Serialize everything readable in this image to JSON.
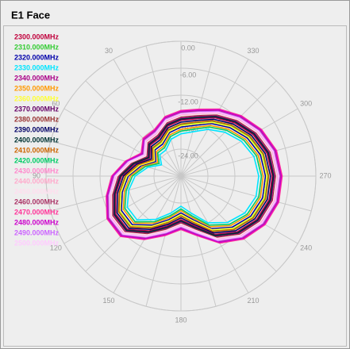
{
  "chart_data": {
    "type": "polar",
    "title": "E1 Face",
    "theta": [
      0,
      15,
      30,
      45,
      60,
      75,
      90,
      105,
      120,
      135,
      150,
      165,
      180,
      195,
      210,
      225,
      240,
      255,
      270,
      285,
      300,
      315,
      330,
      345
    ],
    "thetaticks": [
      30,
      60,
      90,
      120,
      150,
      180,
      210,
      240,
      270,
      300,
      330
    ],
    "rlim": [
      -30,
      0
    ],
    "rticks": [
      {
        "value": 0,
        "label": "0.00"
      },
      {
        "value": -6,
        "label": "-6.00"
      },
      {
        "value": -12,
        "label": "-12.00"
      },
      {
        "value": -18,
        "label": "-18.00"
      },
      {
        "value": -24,
        "label": "-24.00"
      }
    ],
    "series": [
      {
        "name": "2300.000MHz",
        "color": "#c0003c",
        "values": [
          -17.6,
          -18.5,
          -20.3,
          -20.3,
          -22,
          -19.4,
          -16.8,
          -15,
          -13.2,
          -13.2,
          -15.9,
          -18.5,
          -20.3,
          -18.5,
          -15,
          -12.4,
          -10.6,
          -9.7,
          -9.7,
          -10.2,
          -11.5,
          -13.2,
          -15,
          -16.8
        ]
      },
      {
        "name": "2310.000MHz",
        "color": "#33cc33",
        "values": [
          -18.6,
          -19.5,
          -21.3,
          -21.3,
          -23,
          -20.4,
          -17.8,
          -16,
          -14.2,
          -14.2,
          -16.9,
          -19.5,
          -21.3,
          -19.5,
          -16,
          -13.4,
          -11.6,
          -10.7,
          -10.7,
          -11.2,
          -12.5,
          -14.2,
          -16,
          -17.8
        ]
      },
      {
        "name": "2320.000MHz",
        "color": "#0000aa",
        "values": [
          -19.1,
          -20,
          -21.8,
          -21.8,
          -23.5,
          -20.9,
          -18.3,
          -16.5,
          -14.7,
          -14.7,
          -17.4,
          -20,
          -21.8,
          -20,
          -16.5,
          -13.9,
          -12.1,
          -11.2,
          -11.2,
          -11.7,
          -13,
          -14.7,
          -16.5,
          -18.3
        ]
      },
      {
        "name": "2330.000MHz",
        "color": "#00e5ff",
        "values": [
          -20.6,
          -21.5,
          -23.3,
          -23.3,
          -25,
          -22.4,
          -19.8,
          -18,
          -16.2,
          -16.2,
          -18.9,
          -21.5,
          -23.3,
          -21.5,
          -18,
          -15.4,
          -13.6,
          -12.7,
          -12.7,
          -13.2,
          -14.5,
          -16.2,
          -18,
          -19.8
        ]
      },
      {
        "name": "2340.000MHz",
        "color": "#aa0088",
        "values": [
          -17.1,
          -18,
          -19.8,
          -19.8,
          -21.5,
          -18.9,
          -16.3,
          -14.5,
          -12.7,
          -12.7,
          -15.4,
          -18,
          -19.8,
          -18,
          -14.5,
          -11.9,
          -10.1,
          -9.2,
          -9.2,
          -9.7,
          -11,
          -12.7,
          -14.5,
          -16.3
        ]
      },
      {
        "name": "2350.000MHz",
        "color": "#ff9900",
        "values": [
          -19.6,
          -20.5,
          -22.3,
          -22.3,
          -24,
          -21.4,
          -18.8,
          -17,
          -15.2,
          -15.2,
          -17.9,
          -20.5,
          -22.3,
          -20.5,
          -17,
          -14.4,
          -12.6,
          -11.7,
          -11.7,
          -12.2,
          -13.5,
          -15.2,
          -17,
          -18.8
        ]
      },
      {
        "name": "2360.000MHz",
        "color": "#ffff33",
        "values": [
          -18.8,
          -19.7,
          -21.5,
          -21.5,
          -23.2,
          -20.6,
          -18,
          -16.2,
          -14.4,
          -14.4,
          -17.1,
          -19.7,
          -21.5,
          -19.7,
          -16.2,
          -13.6,
          -11.8,
          -10.9,
          -10.9,
          -11.4,
          -12.7,
          -14.4,
          -16.2,
          -18
        ]
      },
      {
        "name": "2370.000MHz",
        "color": "#660066",
        "values": [
          -17.4,
          -18.3,
          -20.1,
          -20.1,
          -21.8,
          -19.2,
          -16.6,
          -14.8,
          -13,
          -13,
          -15.7,
          -18.3,
          -20.1,
          -18.3,
          -14.8,
          -12.2,
          -10.4,
          -9.5,
          -9.5,
          -10,
          -11.3,
          -13,
          -14.8,
          -16.6
        ]
      },
      {
        "name": "2380.000MHz",
        "color": "#993333",
        "values": [
          -16.8,
          -17.7,
          -19.5,
          -19.5,
          -21.2,
          -18.6,
          -16,
          -14.2,
          -12.4,
          -12.4,
          -15.1,
          -17.7,
          -19.5,
          -17.7,
          -14.2,
          -11.6,
          -9.8,
          -8.9,
          -8.9,
          -9.4,
          -10.7,
          -12.4,
          -14.2,
          -16
        ]
      },
      {
        "name": "2390.000MHz",
        "color": "#000066",
        "values": [
          -18,
          -18.9,
          -20.7,
          -20.7,
          -22.4,
          -19.8,
          -17.2,
          -15.4,
          -13.6,
          -13.6,
          -16.3,
          -18.9,
          -20.7,
          -18.9,
          -15.4,
          -12.8,
          -11,
          -10.1,
          -10.1,
          -10.6,
          -11.9,
          -13.6,
          -15.4,
          -17.2
        ]
      },
      {
        "name": "2400.000MHz",
        "color": "#003333",
        "values": [
          -17.3,
          -18.2,
          -20,
          -20,
          -21.7,
          -19.1,
          -16.5,
          -14.7,
          -12.9,
          -12.9,
          -15.6,
          -18.2,
          -20,
          -18.2,
          -14.7,
          -12.1,
          -10.3,
          -9.4,
          -9.4,
          -9.9,
          -11.2,
          -12.9,
          -14.7,
          -16.5
        ]
      },
      {
        "name": "2410.000MHz",
        "color": "#cc6600",
        "values": [
          -18.4,
          -19.3,
          -21.1,
          -21.1,
          -22.8,
          -20.2,
          -17.6,
          -15.8,
          -14,
          -14,
          -16.7,
          -19.3,
          -21.1,
          -19.3,
          -15.8,
          -13.2,
          -11.4,
          -10.5,
          -10.5,
          -11,
          -12.3,
          -14,
          -15.8,
          -17.6
        ]
      },
      {
        "name": "2420.000MHz",
        "color": "#00cc66",
        "values": [
          -20,
          -20.9,
          -22.7,
          -22.7,
          -24.4,
          -21.8,
          -19.2,
          -17.4,
          -15.6,
          -15.6,
          -18.3,
          -20.9,
          -22.7,
          -20.9,
          -17.4,
          -14.8,
          -13,
          -12.1,
          -12.1,
          -12.6,
          -13.9,
          -15.6,
          -17.4,
          -19.2
        ]
      },
      {
        "name": "2430.000MHz",
        "color": "#ff88cc",
        "values": [
          -16.4,
          -17.3,
          -19.1,
          -19.1,
          -20.8,
          -18.2,
          -15.6,
          -13.8,
          -12,
          -12,
          -14.7,
          -17.3,
          -19.1,
          -17.3,
          -13.8,
          -11.2,
          -9.4,
          -8.5,
          -8.5,
          -9,
          -10.3,
          -12,
          -13.8,
          -15.6
        ]
      },
      {
        "name": "2440.000MHz",
        "color": "#ffaacc",
        "values": [
          -16.1,
          -17,
          -18.8,
          -18.8,
          -20.5,
          -17.9,
          -15.3,
          -13.5,
          -11.7,
          -11.7,
          -14.4,
          -17,
          -18.8,
          -17,
          -13.5,
          -10.9,
          -9.1,
          -8.2,
          -8.2,
          -8.7,
          -10,
          -11.7,
          -13.5,
          -15.3
        ]
      },
      {
        "name": "2450.000MHz",
        "color": "#ffddee",
        "values": [
          -16.6,
          -17.5,
          -19.3,
          -19.3,
          -21,
          -18.4,
          -15.8,
          -14,
          -12.2,
          -12.2,
          -14.9,
          -17.5,
          -19.3,
          -17.5,
          -14,
          -11.4,
          -9.6,
          -8.7,
          -8.7,
          -9.2,
          -10.5,
          -12.2,
          -14,
          -15.8
        ]
      },
      {
        "name": "2460.000MHz",
        "color": "#aa3366",
        "values": [
          -15.8,
          -16.7,
          -18.5,
          -18.5,
          -20.2,
          -17.6,
          -15,
          -13.2,
          -11.4,
          -11.4,
          -14.1,
          -16.7,
          -18.5,
          -16.7,
          -13.2,
          -10.6,
          -8.8,
          -7.9,
          -7.9,
          -8.4,
          -9.7,
          -11.4,
          -13.2,
          -15
        ]
      },
      {
        "name": "2470.000MHz",
        "color": "#ff3399",
        "values": [
          -15.4,
          -16.3,
          -18.1,
          -18.1,
          -19.8,
          -17.2,
          -14.6,
          -12.8,
          -11,
          -11,
          -13.7,
          -16.3,
          -18.1,
          -16.3,
          -12.8,
          -10.2,
          -8.4,
          -7.5,
          -7.5,
          -8,
          -9.3,
          -11,
          -12.8,
          -14.6
        ]
      },
      {
        "name": "2480.000MHz",
        "color": "#cc00cc",
        "values": [
          -15.6,
          -16.5,
          -18.3,
          -18.3,
          -20,
          -17.4,
          -14.8,
          -13,
          -11.2,
          -11.2,
          -13.9,
          -16.5,
          -18.3,
          -16.5,
          -13,
          -10.4,
          -8.6,
          -7.7,
          -7.7,
          -8.2,
          -9.5,
          -11.2,
          -13,
          -14.8
        ]
      },
      {
        "name": "2490.000MHz",
        "color": "#cc66ff",
        "values": [
          -16,
          -16.9,
          -18.7,
          -18.7,
          -20.4,
          -17.8,
          -15.2,
          -13.4,
          -11.6,
          -11.6,
          -14.3,
          -16.9,
          -18.7,
          -16.9,
          -13.4,
          -10.8,
          -9,
          -8.1,
          -8.1,
          -8.6,
          -9.9,
          -11.6,
          -13.4,
          -15.2
        ]
      },
      {
        "name": "2500.000MHz",
        "color": "#ffccff",
        "values": [
          -16.2,
          -17.1,
          -18.9,
          -18.9,
          -20.6,
          -18,
          -15.4,
          -13.6,
          -11.8,
          -11.8,
          -14.5,
          -17.1,
          -18.9,
          -17.1,
          -13.6,
          -11,
          -9.2,
          -8.3,
          -8.3,
          -8.8,
          -10.1,
          -11.8,
          -13.6,
          -15.4
        ]
      }
    ]
  }
}
